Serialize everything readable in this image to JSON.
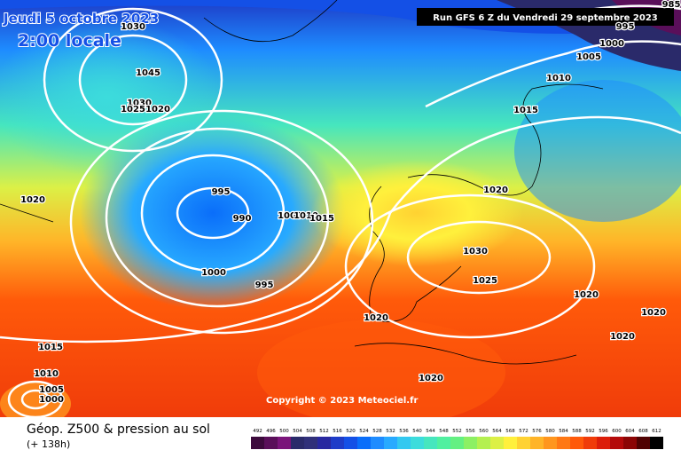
{
  "header": {
    "date": "Jeudi 5 octobre 2023",
    "time": "2:00 locale",
    "run": "Run GFS 6 Z du Vendredi 29 septembre 2023"
  },
  "isobar_labels": [
    "1030",
    "1045",
    "1030",
    "1025",
    "1020",
    "1020",
    "995",
    "990",
    "1000",
    "1010",
    "1015",
    "1000",
    "995",
    "1015",
    "1010",
    "1005",
    "1000",
    "1020",
    "1020",
    "1030",
    "1025",
    "1020",
    "1015",
    "1010",
    "1005",
    "1000",
    "995",
    "985",
    "1020",
    "1020",
    "1020"
  ],
  "copyright": "Copyright © 2023 Meteociel.fr",
  "footer": {
    "title": "Géop. Z500 & pression au sol",
    "lead": "(+ 138h)"
  },
  "scale": {
    "values": [
      492,
      496,
      500,
      504,
      508,
      512,
      516,
      520,
      524,
      528,
      532,
      536,
      540,
      544,
      548,
      552,
      556,
      560,
      564,
      568,
      572,
      576,
      580,
      584,
      588,
      592,
      596,
      600,
      604,
      608,
      612
    ],
    "colors": [
      "#3c0a3c",
      "#5a0f5a",
      "#7a147a",
      "#2a2a6a",
      "#30307a",
      "#2828a0",
      "#1e3cc8",
      "#1450e6",
      "#0a6efa",
      "#1e8cff",
      "#28aaff",
      "#32c8f0",
      "#3cdcdc",
      "#46e6be",
      "#50f0a0",
      "#64f082",
      "#8cf064",
      "#b4f050",
      "#dcf046",
      "#fff03c",
      "#ffd232",
      "#ffb428",
      "#ff961e",
      "#ff7814",
      "#ff5a0a",
      "#f03c0a",
      "#dc1e0a",
      "#b40a0a",
      "#8c0505",
      "#500202",
      "#000000"
    ]
  }
}
